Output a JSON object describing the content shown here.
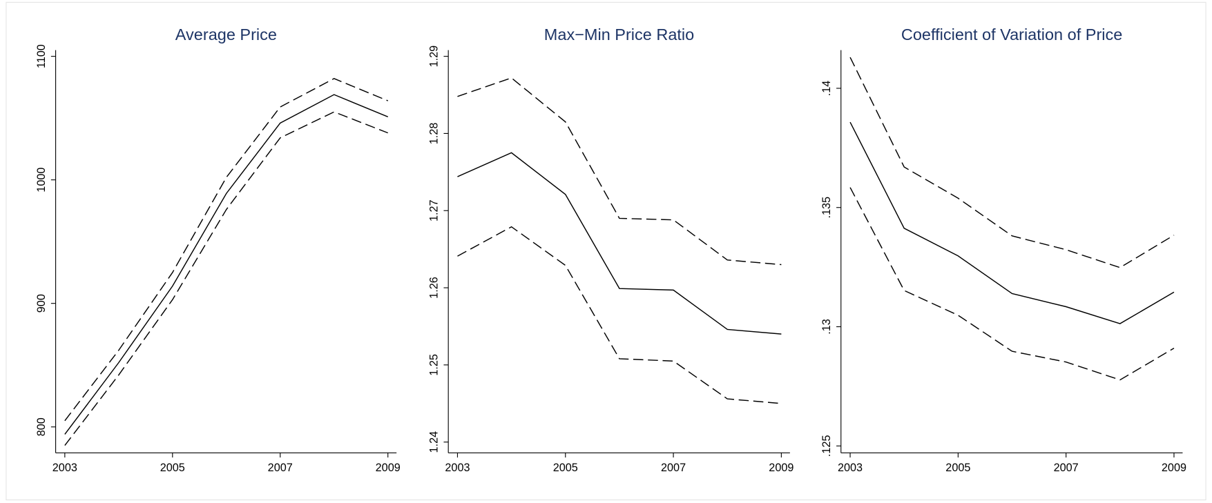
{
  "chart_data": [
    {
      "type": "line",
      "title": "Average Price",
      "x": [
        2003,
        2004,
        2005,
        2006,
        2007,
        2008,
        2009
      ],
      "xlim": [
        2002.83,
        2009.16
      ],
      "xticks": [
        2003,
        2005,
        2007,
        2009
      ],
      "ylim": [
        779,
        1105
      ],
      "yticks": [
        800,
        900,
        1000,
        1100
      ],
      "series": [
        {
          "color": "#000000",
          "dash": false,
          "values": [
            794,
            852,
            914,
            989,
            1046,
            1069,
            1051
          ]
        },
        {
          "color": "#000000",
          "dash": true,
          "values": [
            805,
            862,
            925,
            1002,
            1059,
            1082,
            1064
          ]
        },
        {
          "color": "#000000",
          "dash": true,
          "values": [
            785,
            842,
            903,
            976,
            1034,
            1055,
            1038
          ]
        }
      ]
    },
    {
      "type": "line",
      "title": "Max−Min Price Ratio",
      "x": [
        2003,
        2004,
        2005,
        2006,
        2007,
        2008,
        2009
      ],
      "xlim": [
        2002.83,
        2009.16
      ],
      "xticks": [
        2003,
        2005,
        2007,
        2009
      ],
      "ylim": [
        1.2386,
        1.2908
      ],
      "yticks": [
        1.24,
        1.25,
        1.26,
        1.27,
        1.28,
        1.29
      ],
      "series": [
        {
          "color": "#000000",
          "dash": false,
          "values": [
            1.2744,
            1.2775,
            1.2721,
            1.2599,
            1.2597,
            1.2546,
            1.254
          ]
        },
        {
          "color": "#000000",
          "dash": true,
          "values": [
            1.2848,
            1.2872,
            1.2815,
            1.269,
            1.2688,
            1.2636,
            1.263
          ]
        },
        {
          "color": "#000000",
          "dash": true,
          "values": [
            1.2641,
            1.2679,
            1.2629,
            1.2508,
            1.2505,
            1.2456,
            1.245
          ]
        }
      ]
    },
    {
      "type": "line",
      "title": "Coefficient of Variation of Price",
      "x": [
        2003,
        2004,
        2005,
        2006,
        2007,
        2008,
        2009
      ],
      "xlim": [
        2002.83,
        2009.16
      ],
      "xticks": [
        2003,
        2005,
        2007,
        2009
      ],
      "ylim": [
        0.12471,
        0.1416
      ],
      "yticks": [
        {
          "value": 0.125,
          "label": ".125"
        },
        {
          "value": 0.13,
          "label": ".13"
        },
        {
          "value": 0.135,
          "label": ".135"
        },
        {
          "value": 0.14,
          "label": ".14"
        }
      ],
      "series": [
        {
          "color": "#000000",
          "dash": false,
          "values": [
            0.13858,
            0.13413,
            0.13297,
            0.13139,
            0.13084,
            0.13013,
            0.13145
          ]
        },
        {
          "color": "#000000",
          "dash": true,
          "values": [
            0.1413,
            0.1367,
            0.13539,
            0.13381,
            0.13323,
            0.13248,
            0.13384
          ]
        },
        {
          "color": "#000000",
          "dash": true,
          "values": [
            0.13584,
            0.13152,
            0.13048,
            0.12897,
            0.12852,
            0.12777,
            0.1291
          ]
        }
      ]
    }
  ]
}
